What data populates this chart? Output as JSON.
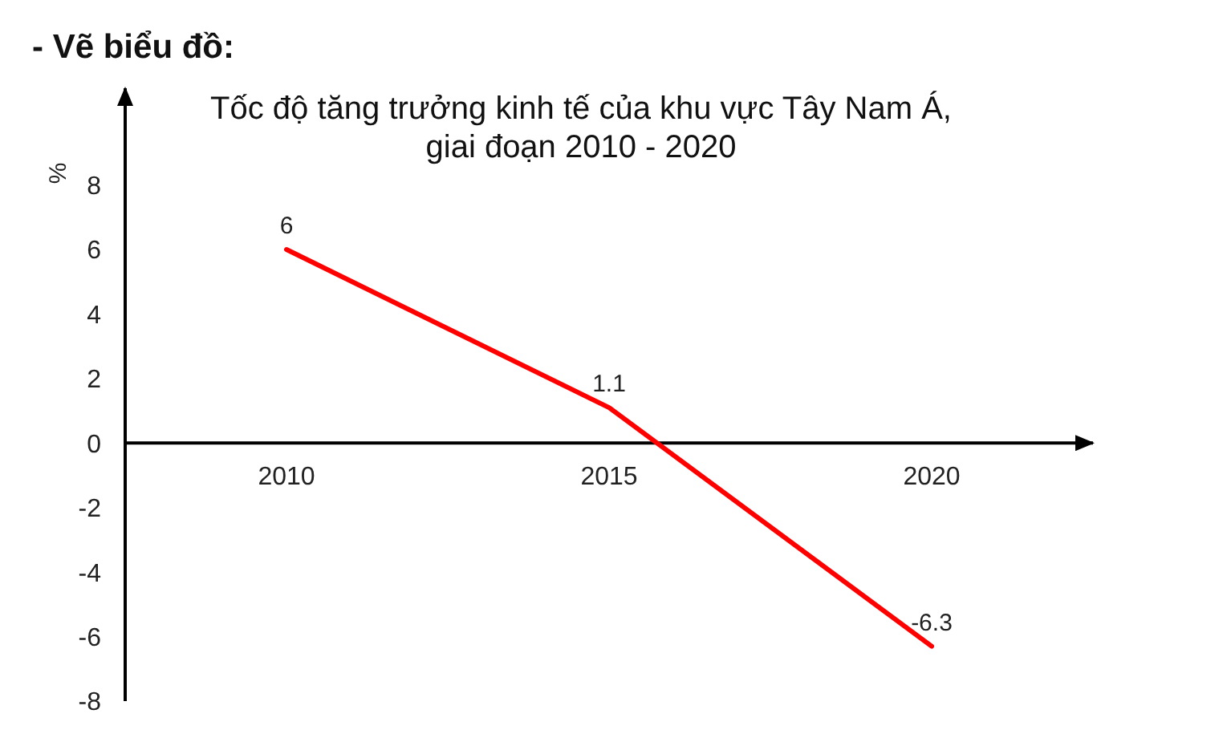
{
  "chart_data": {
    "type": "line",
    "title": "Tốc độ tăng trưởng kinh tế của khu vực Tây Nam Á,\ngiai đoạn 2010 - 2020",
    "ylabel": "%",
    "annotations": [
      "- Vẽ biểu đồ:"
    ],
    "categories": [
      "2010",
      "2015",
      "2020"
    ],
    "values": [
      6,
      1.1,
      -6.3
    ],
    "color": "#ff0000",
    "ylim": [
      -8,
      11
    ],
    "yticks": [
      -8,
      -6,
      -4,
      -2,
      0,
      2,
      4,
      6,
      8
    ],
    "marker": "none",
    "line_style": "solid",
    "data_labels": true
  }
}
